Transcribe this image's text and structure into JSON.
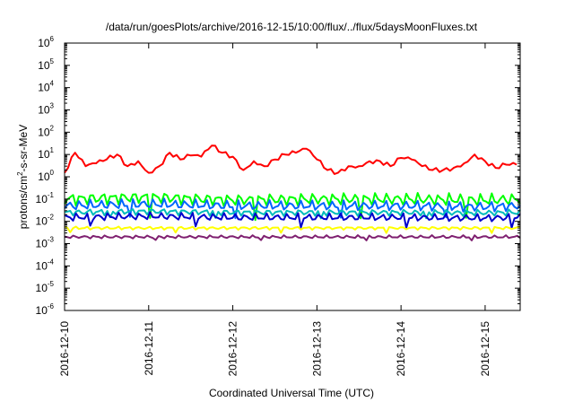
{
  "chart_data": {
    "type": "line",
    "title": "/data/run/goesPlots/archive/2016-12-15/10:00/flux/../flux/5daysMoonFluxes.txt",
    "xlabel": "Coordinated Universal Time (UTC)",
    "ylabel": {
      "base": "protons/cm",
      "exponent": "2",
      "rest": "-s-sr-MeV"
    },
    "x_axis": {
      "scale": "time",
      "range": [
        "2016-12-10T00:00",
        "2016-12-15T10:00"
      ],
      "tick_labels": [
        "2016-12-10",
        "2016-12-11",
        "2016-12-12",
        "2016-12-13",
        "2016-12-14",
        "2016-12-15"
      ]
    },
    "y_axis": {
      "scale": "log",
      "range": [
        1e-06,
        1000000.0
      ],
      "tick_labels": [
        {
          "base": "10",
          "exp": "-6"
        },
        {
          "base": "10",
          "exp": "-5"
        },
        {
          "base": "10",
          "exp": "-4"
        },
        {
          "base": "10",
          "exp": "-3"
        },
        {
          "base": "10",
          "exp": "-2"
        },
        {
          "base": "10",
          "exp": "-1"
        },
        {
          "base": "10",
          "exp": "0"
        },
        {
          "base": "10",
          "exp": "1"
        },
        {
          "base": "10",
          "exp": "2"
        },
        {
          "base": "10",
          "exp": "3"
        },
        {
          "base": "10",
          "exp": "4"
        },
        {
          "base": "10",
          "exp": "5"
        },
        {
          "base": "10",
          "exp": "6"
        }
      ]
    },
    "grid": false,
    "legend": "none",
    "series": [
      {
        "color": "#ff0000",
        "x": [
          "2016-12-10T00:00",
          "2016-12-10T03:00",
          "2016-12-10T06:00",
          "2016-12-10T09:00",
          "2016-12-10T12:00",
          "2016-12-10T15:00",
          "2016-12-10T18:00",
          "2016-12-10T21:00",
          "2016-12-11T00:00",
          "2016-12-11T03:00",
          "2016-12-11T06:00",
          "2016-12-11T09:00",
          "2016-12-11T12:00",
          "2016-12-11T15:00",
          "2016-12-11T18:00",
          "2016-12-11T21:00",
          "2016-12-12T00:00",
          "2016-12-12T03:00",
          "2016-12-12T06:00",
          "2016-12-12T09:00",
          "2016-12-12T12:00",
          "2016-12-12T15:00",
          "2016-12-12T18:00",
          "2016-12-12T21:00",
          "2016-12-13T00:00",
          "2016-12-13T03:00",
          "2016-12-13T06:00",
          "2016-12-13T09:00",
          "2016-12-13T12:00",
          "2016-12-13T15:00",
          "2016-12-13T18:00",
          "2016-12-13T21:00",
          "2016-12-14T00:00",
          "2016-12-14T03:00",
          "2016-12-14T06:00",
          "2016-12-14T09:00",
          "2016-12-14T12:00",
          "2016-12-14T15:00",
          "2016-12-14T18:00",
          "2016-12-14T21:00",
          "2016-12-15T00:00",
          "2016-12-15T03:00",
          "2016-12-15T06:00",
          "2016-12-15T09:00"
        ],
        "values": [
          1.5,
          12,
          3,
          4,
          6,
          10,
          3,
          5,
          1.5,
          3,
          12,
          6,
          9,
          8,
          25,
          12,
          8,
          2,
          5,
          3,
          6,
          10,
          12,
          18,
          6,
          2,
          1.5,
          3,
          3,
          5,
          5,
          3,
          7,
          6,
          3,
          2,
          2,
          2.5,
          4,
          10,
          5,
          2.5,
          3.5,
          3.5
        ]
      },
      {
        "color": "#00ff00",
        "x": [
          "2016-12-10T00:00",
          "2016-12-11T00:00",
          "2016-12-12T00:00",
          "2016-12-13T00:00",
          "2016-12-14T00:00",
          "2016-12-15T00:00",
          "2016-12-15T10:00"
        ],
        "values": [
          0.1,
          0.12,
          0.09,
          0.1,
          0.1,
          0.09,
          0.1
        ]
      },
      {
        "color": "#0066ff",
        "x": [
          "2016-12-10T00:00",
          "2016-12-11T00:00",
          "2016-12-12T00:00",
          "2016-12-13T00:00",
          "2016-12-14T00:00",
          "2016-12-15T00:00",
          "2016-12-15T10:00"
        ],
        "values": [
          0.05,
          0.06,
          0.05,
          0.05,
          0.05,
          0.045,
          0.05
        ]
      },
      {
        "color": "#00bbbb",
        "x": [
          "2016-12-10T00:00",
          "2016-12-11T00:00",
          "2016-12-12T00:00",
          "2016-12-13T00:00",
          "2016-12-14T00:00",
          "2016-12-15T00:00",
          "2016-12-15T10:00"
        ],
        "values": [
          0.025,
          0.028,
          0.025,
          0.025,
          0.025,
          0.024,
          0.025
        ]
      },
      {
        "color": "#0000cc",
        "x": [
          "2016-12-10T00:00",
          "2016-12-11T00:00",
          "2016-12-12T00:00",
          "2016-12-13T00:00",
          "2016-12-14T00:00",
          "2016-12-15T00:00",
          "2016-12-15T10:00"
        ],
        "values": [
          0.015,
          0.017,
          0.015,
          0.015,
          0.015,
          0.014,
          0.015
        ]
      },
      {
        "color": "#ffff00",
        "x": [
          "2016-12-10T00:00",
          "2016-12-11T00:00",
          "2016-12-12T00:00",
          "2016-12-13T00:00",
          "2016-12-14T00:00",
          "2016-12-15T00:00",
          "2016-12-15T10:00"
        ],
        "values": [
          0.005,
          0.005,
          0.005,
          0.005,
          0.005,
          0.005,
          0.005
        ]
      },
      {
        "color": "#7f2070",
        "x": [
          "2016-12-10T00:00",
          "2016-12-11T00:00",
          "2016-12-12T00:00",
          "2016-12-13T00:00",
          "2016-12-14T00:00",
          "2016-12-15T00:00",
          "2016-12-15T10:00"
        ],
        "values": [
          0.002,
          0.002,
          0.002,
          0.002,
          0.002,
          0.002,
          0.002
        ]
      }
    ]
  }
}
